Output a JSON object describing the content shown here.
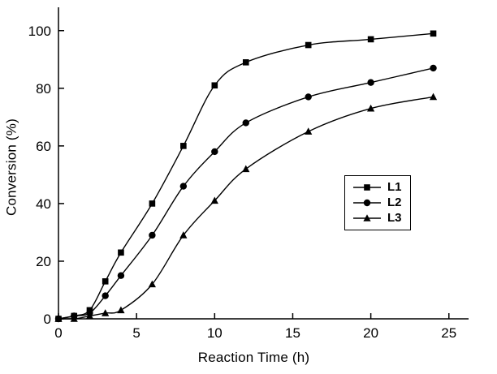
{
  "chart_data": {
    "type": "line",
    "title": "",
    "xlabel": "Reaction Time (h)",
    "ylabel": "Conversion (%)",
    "x": [
      0,
      1,
      2,
      3,
      4,
      6,
      8,
      10,
      12,
      16,
      20,
      24
    ],
    "series": [
      {
        "name": "L1",
        "marker": "square",
        "values": [
          0,
          1,
          3,
          13,
          23,
          40,
          60,
          81,
          89,
          95,
          97,
          99
        ]
      },
      {
        "name": "L2",
        "marker": "circle",
        "values": [
          0,
          1,
          2,
          8,
          15,
          29,
          46,
          58,
          68,
          77,
          82,
          87
        ]
      },
      {
        "name": "L3",
        "marker": "triangle",
        "values": [
          0,
          0,
          1,
          2,
          3,
          12,
          29,
          41,
          52,
          65,
          73,
          77
        ]
      }
    ],
    "xlim": [
      0,
      26
    ],
    "ylim": [
      0,
      105
    ],
    "xticks": [
      0,
      5,
      10,
      15,
      20,
      25
    ],
    "yticks": [
      0,
      20,
      40,
      60,
      80,
      100
    ],
    "grid": false,
    "legend_position": "right-center",
    "color": "#000000",
    "background": "#ffffff"
  }
}
